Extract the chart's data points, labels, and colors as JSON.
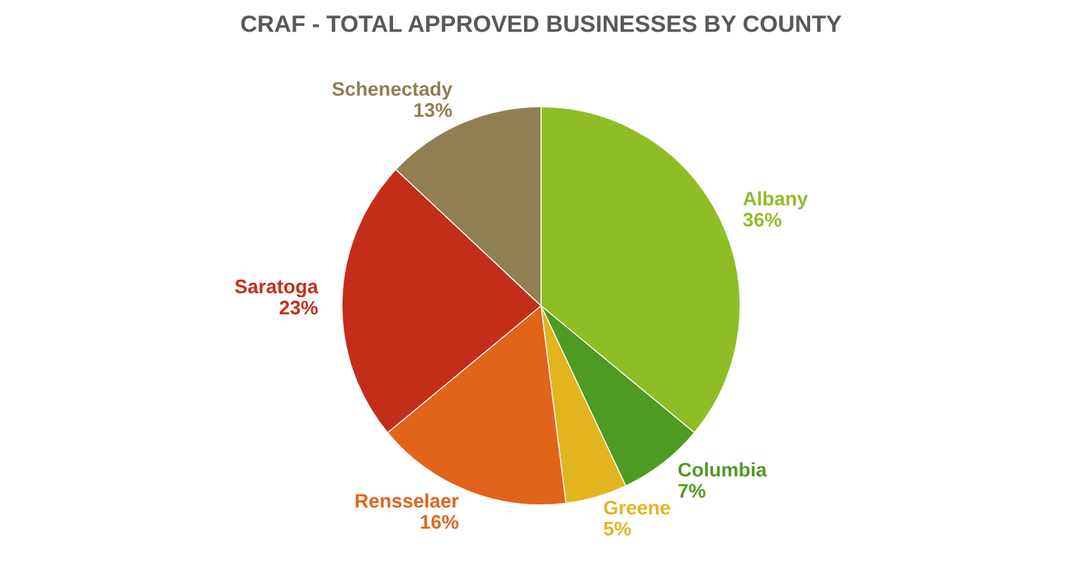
{
  "chart_data": {
    "type": "pie",
    "title": "CRAF - TOTAL APPROVED BUSINESSES BY COUNTY",
    "categories": [
      "Albany",
      "Columbia",
      "Greene",
      "Rensselaer",
      "Saratoga",
      "Schenectady"
    ],
    "values": [
      36,
      7,
      5,
      16,
      23,
      13
    ],
    "value_labels": [
      "36%",
      "7%",
      "5%",
      "16%",
      "23%",
      "13%"
    ],
    "colors": [
      "#8fbd26",
      "#4f9a22",
      "#e2b41f",
      "#e2631a",
      "#c32e1a",
      "#8f7f52"
    ],
    "legend": false
  }
}
